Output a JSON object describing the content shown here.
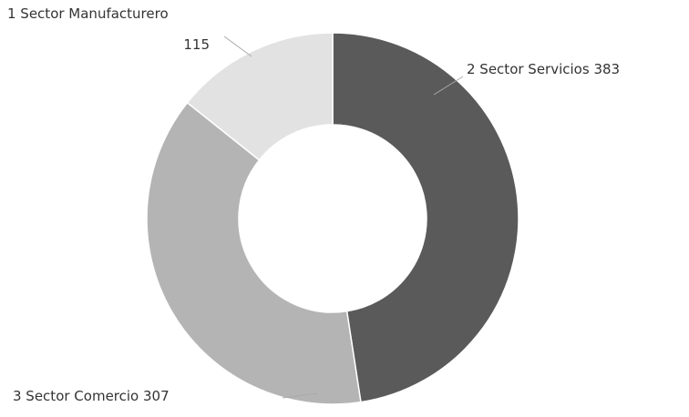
{
  "chart_data": {
    "type": "donut",
    "categories": [
      "2 Sector Servicios",
      "3 Sector Comercio",
      "1 Sector Manufacturero"
    ],
    "values": [
      383,
      307,
      115
    ],
    "colors": [
      "#5a5a5a",
      "#b4b4b4",
      "#e2e2e2"
    ]
  }
}
